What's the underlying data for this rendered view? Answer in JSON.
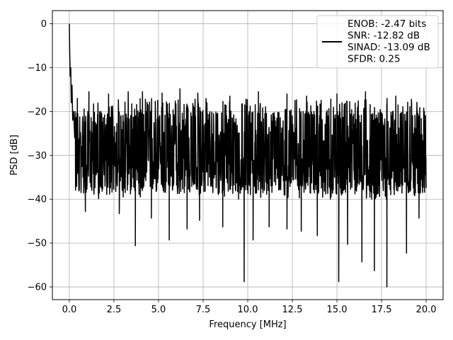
{
  "chart_data": {
    "type": "line",
    "title": "",
    "xlabel": "Frequency [MHz]",
    "ylabel": "PSD [dB]",
    "xlim": [
      -0.95,
      20.95
    ],
    "ylim": [
      -62.9,
      3.0
    ],
    "xticks": [
      0.0,
      2.5,
      5.0,
      7.5,
      10.0,
      12.5,
      15.0,
      17.5,
      20.0
    ],
    "xtick_labels": [
      "0.0",
      "2.5",
      "5.0",
      "7.5",
      "10.0",
      "12.5",
      "15.0",
      "17.5",
      "20.0"
    ],
    "yticks": [
      0,
      -10,
      -20,
      -30,
      -40,
      -50,
      -60
    ],
    "ytick_labels": [
      "0",
      "−10",
      "−20",
      "−30",
      "−40",
      "−50",
      "−60"
    ],
    "grid": true,
    "legend_position": "top-right",
    "series": [
      {
        "color": "#000000",
        "legend_lines": [
          "ENOB: -2.47 bits",
          "SNR: -12.82 dB",
          "SINAD: -13.09 dB",
          "SFDR: 0.25"
        ],
        "x_range": [
          0.0,
          20.0
        ],
        "noise_envelope": {
          "upper_db": -17,
          "lower_db": -40,
          "typical_db": -28
        },
        "dc_spike": [
          [
            0.0,
            0.0
          ],
          [
            0.02,
            -6
          ],
          [
            0.05,
            -12
          ],
          [
            0.08,
            -10
          ],
          [
            0.11,
            -18
          ],
          [
            0.15,
            -14
          ],
          [
            0.19,
            -22
          ],
          [
            0.24,
            -20
          ],
          [
            0.3,
            -26
          ]
        ],
        "notable_peaks": [
          [
            0.45,
            -17
          ],
          [
            1.1,
            -15.5
          ],
          [
            2.2,
            -16
          ],
          [
            3.3,
            -15.5
          ],
          [
            4.1,
            -15.5
          ],
          [
            5.2,
            -15.8
          ],
          [
            6.2,
            -14.8
          ],
          [
            7.2,
            -15.8
          ],
          [
            9.0,
            -16.5
          ],
          [
            10.6,
            -15.5
          ],
          [
            12.2,
            -16
          ],
          [
            13.3,
            -16.5
          ],
          [
            15.0,
            -16
          ],
          [
            16.6,
            -15.5
          ],
          [
            18.3,
            -16.5
          ],
          [
            19.9,
            -20
          ]
        ],
        "notable_dips": [
          [
            0.9,
            -42.8
          ],
          [
            2.8,
            -43.3
          ],
          [
            3.7,
            -47.3
          ],
          [
            3.7,
            -50.6
          ],
          [
            4.6,
            -44.3
          ],
          [
            5.6,
            -49.3
          ],
          [
            6.6,
            -46.8
          ],
          [
            7.3,
            -44.8
          ],
          [
            8.6,
            -46.3
          ],
          [
            9.8,
            -58.8
          ],
          [
            10.3,
            -49.3
          ],
          [
            11.2,
            -46.3
          ],
          [
            12.2,
            -46.8
          ],
          [
            13.0,
            -47.3
          ],
          [
            13.9,
            -48.3
          ],
          [
            15.1,
            -58.8
          ],
          [
            15.6,
            -50.3
          ],
          [
            16.4,
            -54.3
          ],
          [
            17.1,
            -56.3
          ],
          [
            17.8,
            -60.0
          ],
          [
            18.9,
            -52.3
          ],
          [
            19.6,
            -44.3
          ]
        ]
      }
    ]
  }
}
